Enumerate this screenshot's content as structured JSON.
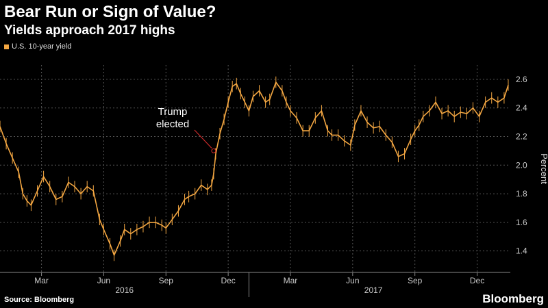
{
  "header": {
    "title": "Bear Run or Sign of Value?",
    "subtitle": "Yields approach 2017 highs"
  },
  "footer": {
    "source": "Source: Bloomberg",
    "brand": "Bloomberg"
  },
  "colors": {
    "series": "#f4a742",
    "grid": "#555555",
    "annotation_arrow": "#e03030"
  },
  "chart_data": {
    "type": "line",
    "title": "Bear Run or Sign of Value?",
    "subtitle": "Yields approach 2017 highs",
    "legend": [
      "U.S. 10-year yield"
    ],
    "legend_position": "top-left",
    "ylabel": "Percent",
    "ylim": [
      1.25,
      2.7
    ],
    "y_ticks": [
      1.4,
      1.6,
      1.8,
      2.0,
      2.2,
      2.4,
      2.6
    ],
    "y_tick_labels": [
      "1.4",
      "1.6",
      "1.8",
      "2.0",
      "2.2",
      "2.4",
      "2.6"
    ],
    "x_unit": "months since Jan 1 2016",
    "xlim": [
      0,
      24.6
    ],
    "x_ticks": [
      {
        "x": 2,
        "label": "Mar"
      },
      {
        "x": 5,
        "label": "Jun"
      },
      {
        "x": 8,
        "label": "Sep"
      },
      {
        "x": 11,
        "label": "Dec"
      },
      {
        "x": 14,
        "label": "Mar"
      },
      {
        "x": 17,
        "label": "Jun"
      },
      {
        "x": 20,
        "label": "Sep"
      },
      {
        "x": 23,
        "label": "Dec"
      }
    ],
    "year_labels": [
      {
        "x": 6,
        "label": "2016"
      },
      {
        "x": 18,
        "label": "2017"
      }
    ],
    "year_divider_x": 12,
    "grid": true,
    "series": [
      {
        "name": "U.S. 10-year yield",
        "x": [
          0,
          0.3,
          0.6,
          0.9,
          1.1,
          1.3,
          1.5,
          1.8,
          2.1,
          2.4,
          2.7,
          3.0,
          3.3,
          3.6,
          3.9,
          4.2,
          4.5,
          4.8,
          5.0,
          5.3,
          5.5,
          5.8,
          6.0,
          6.3,
          6.6,
          6.9,
          7.2,
          7.5,
          7.8,
          8.0,
          8.3,
          8.6,
          8.9,
          9.1,
          9.4,
          9.7,
          10.0,
          10.2,
          10.3,
          10.4,
          10.6,
          10.8,
          11.0,
          11.2,
          11.4,
          11.6,
          11.8,
          12.0,
          12.2,
          12.5,
          12.8,
          13.0,
          13.3,
          13.6,
          13.8,
          14.0,
          14.3,
          14.6,
          14.9,
          15.2,
          15.5,
          15.8,
          16.0,
          16.3,
          16.6,
          16.9,
          17.1,
          17.4,
          17.7,
          18.0,
          18.3,
          18.6,
          18.9,
          19.2,
          19.5,
          19.8,
          20.0,
          20.2,
          20.4,
          20.7,
          21.0,
          21.3,
          21.6,
          21.9,
          22.2,
          22.5,
          22.8,
          23.1,
          23.4,
          23.7,
          24.0,
          24.3,
          24.5
        ],
        "values": [
          2.27,
          2.15,
          2.05,
          1.95,
          1.8,
          1.75,
          1.72,
          1.82,
          1.92,
          1.85,
          1.76,
          1.78,
          1.88,
          1.85,
          1.8,
          1.85,
          1.82,
          1.62,
          1.55,
          1.45,
          1.37,
          1.47,
          1.55,
          1.52,
          1.55,
          1.57,
          1.6,
          1.6,
          1.58,
          1.56,
          1.62,
          1.68,
          1.76,
          1.78,
          1.8,
          1.86,
          1.83,
          1.86,
          1.94,
          2.08,
          2.22,
          2.32,
          2.44,
          2.55,
          2.57,
          2.5,
          2.44,
          2.38,
          2.48,
          2.52,
          2.44,
          2.46,
          2.58,
          2.52,
          2.44,
          2.38,
          2.33,
          2.24,
          2.24,
          2.33,
          2.38,
          2.24,
          2.21,
          2.21,
          2.17,
          2.14,
          2.28,
          2.38,
          2.3,
          2.26,
          2.27,
          2.21,
          2.16,
          2.06,
          2.08,
          2.18,
          2.24,
          2.28,
          2.34,
          2.38,
          2.44,
          2.36,
          2.38,
          2.34,
          2.37,
          2.36,
          2.4,
          2.34,
          2.44,
          2.47,
          2.44,
          2.47,
          2.56
        ]
      }
    ],
    "annotations": [
      {
        "text_lines": [
          "Trump",
          "elected"
        ],
        "x": 10.3,
        "y": 2.1
      }
    ]
  }
}
